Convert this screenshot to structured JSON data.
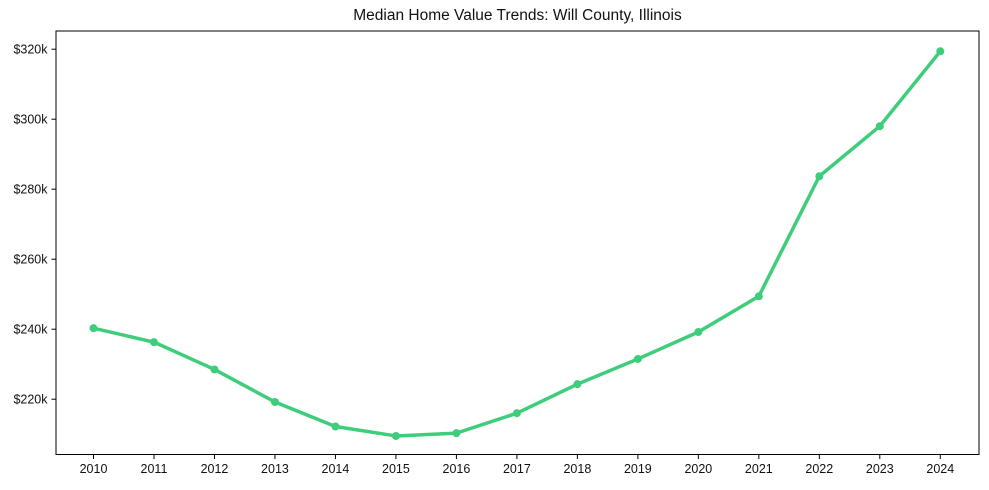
{
  "chart_data": {
    "type": "line",
    "title": "Median Home Value Trends: Will County, Illinois",
    "xlabel": "",
    "ylabel": "",
    "series_name": "median-home-value",
    "unit": "USD thousands",
    "x": [
      2010,
      2011,
      2012,
      2013,
      2014,
      2015,
      2016,
      2017,
      2018,
      2019,
      2020,
      2021,
      2022,
      2023,
      2024
    ],
    "values": [
      240.3,
      236.3,
      228.5,
      219.2,
      212.2,
      209.5,
      210.3,
      216.0,
      224.3,
      231.5,
      239.2,
      249.4,
      283.7,
      298.0,
      319.4
    ],
    "xlim": [
      2009.38,
      2024.64
    ],
    "ylim": [
      204.2,
      325.2
    ],
    "xticks": [
      {
        "value": 2010,
        "label": "2010"
      },
      {
        "value": 2011,
        "label": "2011"
      },
      {
        "value": 2012,
        "label": "2012"
      },
      {
        "value": 2013,
        "label": "2013"
      },
      {
        "value": 2014,
        "label": "2014"
      },
      {
        "value": 2015,
        "label": "2015"
      },
      {
        "value": 2016,
        "label": "2016"
      },
      {
        "value": 2017,
        "label": "2017"
      },
      {
        "value": 2018,
        "label": "2018"
      },
      {
        "value": 2019,
        "label": "2019"
      },
      {
        "value": 2020,
        "label": "2020"
      },
      {
        "value": 2021,
        "label": "2021"
      },
      {
        "value": 2022,
        "label": "2022"
      },
      {
        "value": 2023,
        "label": "2023"
      },
      {
        "value": 2024,
        "label": "2024"
      }
    ],
    "yticks": [
      {
        "value": 220,
        "label": "$220k"
      },
      {
        "value": 240,
        "label": "$240k"
      },
      {
        "value": 260,
        "label": "$260k"
      },
      {
        "value": 280,
        "label": "$280k"
      },
      {
        "value": 300,
        "label": "$300k"
      },
      {
        "value": 320,
        "label": "$320k"
      }
    ],
    "grid": false,
    "legend": "none",
    "colors": {
      "line": "#3ecd7b",
      "marker": "#3ecd7b",
      "axis": "#000000",
      "text": "#111111",
      "background": "#ffffff"
    }
  }
}
